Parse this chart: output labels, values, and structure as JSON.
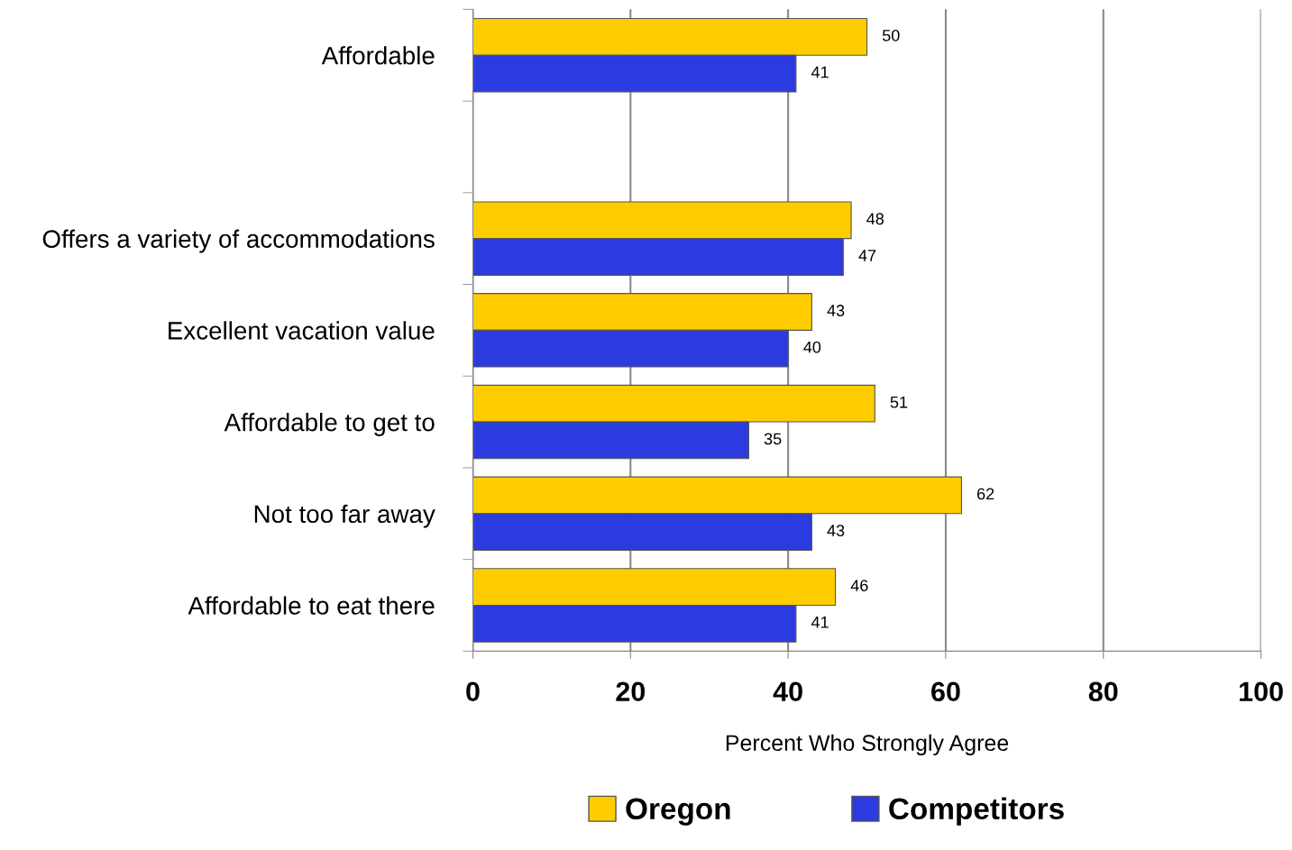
{
  "chart_data": {
    "type": "bar",
    "orientation": "horizontal",
    "categories": [
      "Affordable",
      null,
      "Offers a variety of accommodations",
      "Excellent vacation value",
      "Affordable to get to",
      "Not too far away",
      "Affordable to eat there"
    ],
    "series": [
      {
        "name": "Oregon",
        "color": "#ffcc00",
        "values": [
          50,
          null,
          48,
          43,
          51,
          62,
          46
        ]
      },
      {
        "name": "Competitors",
        "color": "#2b3be0",
        "values": [
          41,
          null,
          47,
          40,
          35,
          43,
          41
        ]
      }
    ],
    "xlabel": "Percent Who Strongly Agree",
    "xlim": [
      0,
      100
    ],
    "xticks": [
      0,
      20,
      40,
      60,
      80,
      100
    ],
    "grid": "x",
    "legend": "bottom",
    "data_labels": true
  }
}
